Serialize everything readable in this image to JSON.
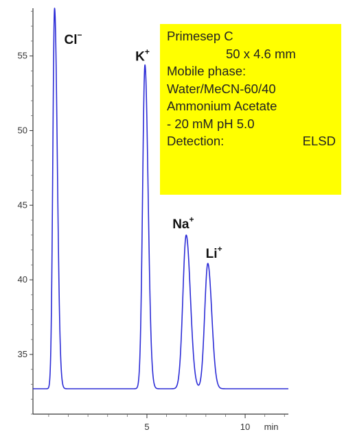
{
  "chart_data": {
    "type": "line",
    "xlabel": "",
    "ylabel": "",
    "x_unit": "min",
    "xlim": [
      -0.8,
      12.2
    ],
    "ylim": [
      31.0,
      58.2
    ],
    "x_ticks": [
      5,
      10
    ],
    "x_tick_labels": [
      "5",
      "10"
    ],
    "y_ticks": [
      35,
      40,
      45,
      50,
      55
    ],
    "y_tick_labels": [
      "35",
      "40",
      "45",
      "50",
      "55"
    ],
    "baseline": 32.7,
    "series": [
      {
        "color": "#2b2bd6",
        "peaks": [
          {
            "label_base": "Cl",
            "label_sup": "−",
            "rt": 0.3,
            "height": 58.2
          },
          {
            "label_base": "K",
            "label_sup": "+",
            "rt": 4.9,
            "height": 54.4
          },
          {
            "label_base": "Na",
            "label_sup": "+",
            "rt": 7.0,
            "height": 43.0
          },
          {
            "label_base": "Li",
            "label_sup": "+",
            "rt": 8.1,
            "height": 41.1
          }
        ]
      }
    ]
  },
  "info_box": {
    "lines": [
      "Primesep C",
      "50 x 4.6 mm",
      "Mobile phase:",
      "Water/MeCN-60/40",
      "Ammonium Acetate",
      "- 20 mM pH 5.0"
    ],
    "detection_label": "Detection:",
    "detection_value": "ELSD",
    "background": "#ffff00"
  }
}
